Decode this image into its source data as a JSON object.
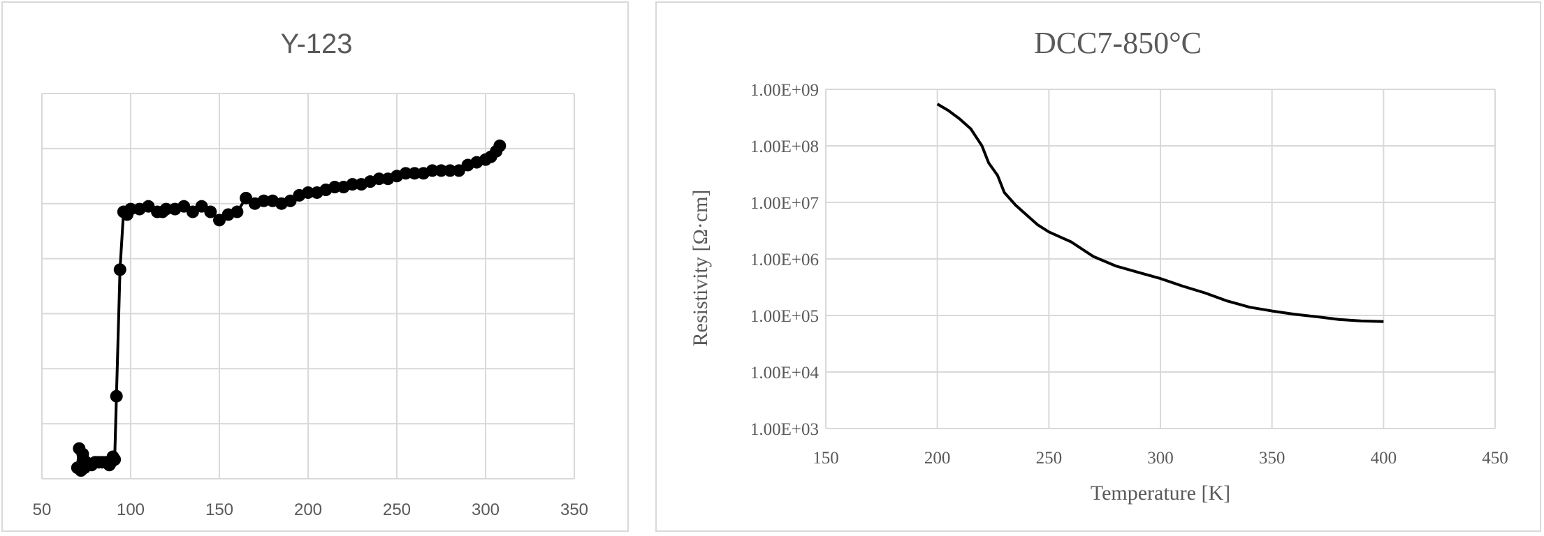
{
  "chart_data": [
    {
      "type": "line",
      "title": "Y-123",
      "xlabel": "",
      "ylabel": "",
      "xlim": [
        50,
        350
      ],
      "xticks": [
        "50",
        "100",
        "150",
        "200",
        "250",
        "300",
        "350"
      ],
      "y_gridlines": 7,
      "y_tick_labels_shown": false,
      "grid": true,
      "line_color": "#000000",
      "markers": true,
      "x": [
        70,
        71,
        72,
        73,
        74,
        75,
        76,
        78,
        80,
        82,
        84,
        86,
        88,
        89,
        90,
        91,
        92,
        94,
        96,
        98,
        100,
        105,
        110,
        115,
        118,
        120,
        125,
        130,
        135,
        140,
        145,
        150,
        155,
        160,
        165,
        170,
        175,
        180,
        185,
        190,
        195,
        200,
        205,
        210,
        215,
        220,
        225,
        230,
        235,
        240,
        245,
        250,
        255,
        260,
        265,
        270,
        275,
        280,
        285,
        290,
        295,
        300,
        303,
        306,
        308
      ],
      "y": [
        0.2,
        0.55,
        0.15,
        0.45,
        0.2,
        0.3,
        0.25,
        0.25,
        0.3,
        0.3,
        0.3,
        0.3,
        0.25,
        0.3,
        0.4,
        0.35,
        1.5,
        3.8,
        4.85,
        4.8,
        4.9,
        4.9,
        4.95,
        4.85,
        4.85,
        4.9,
        4.9,
        4.95,
        4.85,
        4.95,
        4.85,
        4.7,
        4.8,
        4.85,
        5.1,
        5.0,
        5.05,
        5.05,
        5.0,
        5.05,
        5.15,
        5.2,
        5.2,
        5.25,
        5.3,
        5.3,
        5.35,
        5.35,
        5.4,
        5.45,
        5.45,
        5.5,
        5.55,
        5.55,
        5.55,
        5.6,
        5.6,
        5.6,
        5.6,
        5.7,
        5.75,
        5.8,
        5.85,
        5.95,
        6.05
      ],
      "ylim": [
        0,
        7
      ]
    },
    {
      "type": "line",
      "title": "DCC7-850°C",
      "xlabel": "Temperature [K]",
      "ylabel": "Resistivity [Ω·cm]",
      "xlim": [
        150,
        450
      ],
      "xticks": [
        "150",
        "200",
        "250",
        "300",
        "350",
        "400",
        "450"
      ],
      "yscale": "log",
      "ylim": [
        1000,
        1000000000
      ],
      "yticks": [
        "1.00E+03",
        "1.00E+04",
        "1.00E+05",
        "1.00E+06",
        "1.00E+07",
        "1.00E+08",
        "1.00E+09"
      ],
      "grid": true,
      "line_color": "#000000",
      "x": [
        200,
        205,
        210,
        215,
        220,
        223,
        227,
        230,
        235,
        240,
        245,
        250,
        260,
        270,
        280,
        290,
        300,
        310,
        320,
        330,
        340,
        350,
        360,
        370,
        380,
        390,
        400
      ],
      "y": [
        550000000,
        420000000,
        300000000,
        200000000,
        100000000,
        50000000,
        30000000,
        15000000,
        9000000,
        6000000,
        4000000,
        3000000,
        2000000,
        1100000,
        750000,
        580000,
        450000,
        330000,
        250000,
        180000,
        140000,
        120000,
        105000,
        95000,
        85000,
        80000,
        78000
      ]
    }
  ]
}
